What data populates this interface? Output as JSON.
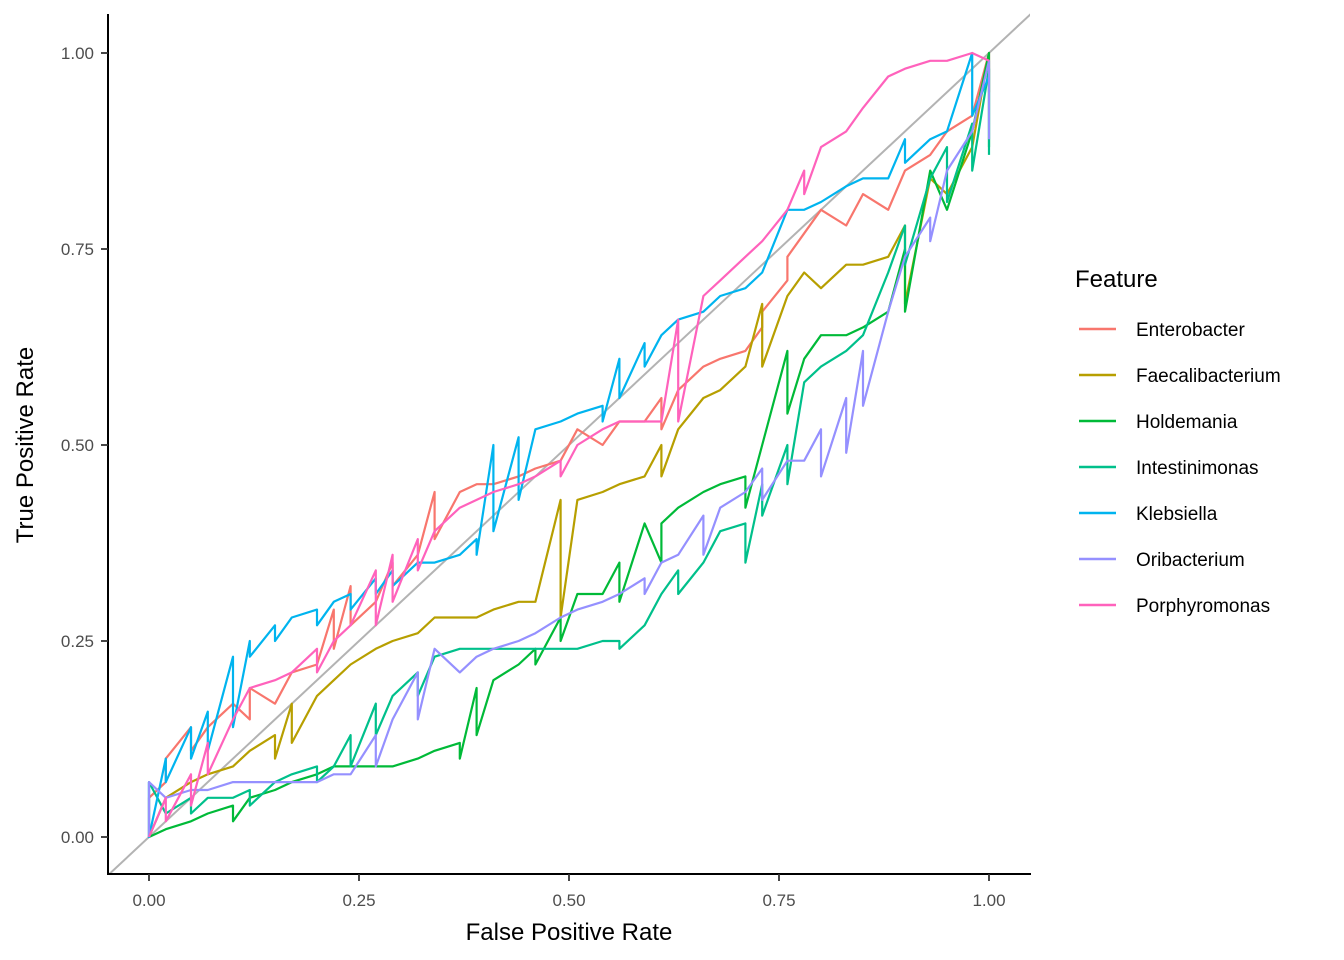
{
  "chart_data": {
    "type": "line",
    "xlabel": "False Positive Rate",
    "ylabel": "True Positive Rate",
    "xlim": [
      0,
      1
    ],
    "ylim": [
      0,
      1
    ],
    "x_ticks": [
      "0.00",
      "0.25",
      "0.50",
      "0.75",
      "1.00"
    ],
    "y_ticks": [
      "0.00",
      "0.25",
      "0.50",
      "0.75",
      "1.00"
    ],
    "x_tick_values": [
      0,
      0.25,
      0.5,
      0.75,
      1
    ],
    "y_tick_values": [
      0,
      0.25,
      0.5,
      0.75,
      1
    ],
    "grid": false,
    "legend": {
      "title": "Feature",
      "position": "right"
    },
    "reference_line": {
      "x": [
        0,
        1
      ],
      "y": [
        0,
        1
      ],
      "color": "#b3b3b3"
    },
    "series": [
      {
        "name": "Enterobacter",
        "color": "#F8766D",
        "x": [
          0,
          0,
          0.02,
          0.02,
          0.05,
          0.05,
          0.07,
          0.1,
          0.12,
          0.12,
          0.15,
          0.17,
          0.2,
          0.22,
          0.22,
          0.24,
          0.24,
          0.27,
          0.29,
          0.29,
          0.32,
          0.34,
          0.34,
          0.37,
          0.39,
          0.41,
          0.44,
          0.46,
          0.49,
          0.51,
          0.54,
          0.56,
          0.59,
          0.61,
          0.61,
          0.63,
          0.66,
          0.68,
          0.71,
          0.73,
          0.73,
          0.76,
          0.76,
          0.78,
          0.8,
          0.83,
          0.85,
          0.88,
          0.9,
          0.93,
          0.95,
          0.98,
          1,
          1
        ],
        "y": [
          0,
          0.05,
          0.07,
          0.1,
          0.14,
          0.11,
          0.14,
          0.17,
          0.15,
          0.19,
          0.17,
          0.21,
          0.22,
          0.29,
          0.24,
          0.32,
          0.27,
          0.3,
          0.35,
          0.32,
          0.36,
          0.44,
          0.38,
          0.44,
          0.45,
          0.45,
          0.46,
          0.47,
          0.48,
          0.52,
          0.5,
          0.53,
          0.53,
          0.56,
          0.52,
          0.57,
          0.6,
          0.61,
          0.62,
          0.65,
          0.67,
          0.71,
          0.74,
          0.77,
          0.8,
          0.78,
          0.82,
          0.8,
          0.85,
          0.87,
          0.9,
          0.92,
          1,
          0.95
        ]
      },
      {
        "name": "Faecalibacterium",
        "color": "#B79F00",
        "x": [
          0,
          0.02,
          0.05,
          0.07,
          0.1,
          0.12,
          0.15,
          0.15,
          0.17,
          0.17,
          0.2,
          0.22,
          0.24,
          0.27,
          0.29,
          0.32,
          0.34,
          0.37,
          0.39,
          0.41,
          0.44,
          0.46,
          0.49,
          0.49,
          0.51,
          0.54,
          0.56,
          0.59,
          0.61,
          0.61,
          0.63,
          0.66,
          0.68,
          0.71,
          0.73,
          0.73,
          0.76,
          0.78,
          0.8,
          0.83,
          0.85,
          0.88,
          0.9,
          0.9,
          0.93,
          0.95,
          0.98,
          1
        ],
        "y": [
          0,
          0.05,
          0.07,
          0.08,
          0.09,
          0.11,
          0.13,
          0.1,
          0.17,
          0.12,
          0.18,
          0.2,
          0.22,
          0.24,
          0.25,
          0.26,
          0.28,
          0.28,
          0.28,
          0.29,
          0.3,
          0.3,
          0.43,
          0.28,
          0.43,
          0.44,
          0.45,
          0.46,
          0.5,
          0.46,
          0.52,
          0.56,
          0.57,
          0.6,
          0.68,
          0.6,
          0.69,
          0.72,
          0.7,
          0.73,
          0.73,
          0.74,
          0.78,
          0.68,
          0.84,
          0.82,
          0.88,
          1
        ]
      },
      {
        "name": "Holdemania",
        "color": "#00BA38",
        "x": [
          0,
          0.02,
          0.05,
          0.07,
          0.1,
          0.1,
          0.12,
          0.15,
          0.17,
          0.2,
          0.22,
          0.24,
          0.27,
          0.29,
          0.32,
          0.34,
          0.37,
          0.37,
          0.39,
          0.39,
          0.41,
          0.44,
          0.46,
          0.46,
          0.49,
          0.49,
          0.51,
          0.54,
          0.56,
          0.56,
          0.59,
          0.61,
          0.61,
          0.63,
          0.66,
          0.68,
          0.71,
          0.71,
          0.73,
          0.76,
          0.76,
          0.78,
          0.8,
          0.83,
          0.85,
          0.88,
          0.9,
          0.9,
          0.93,
          0.95,
          0.98,
          1,
          1
        ],
        "y": [
          0,
          0.01,
          0.02,
          0.03,
          0.04,
          0.02,
          0.05,
          0.06,
          0.07,
          0.08,
          0.09,
          0.09,
          0.09,
          0.09,
          0.1,
          0.11,
          0.12,
          0.1,
          0.19,
          0.13,
          0.2,
          0.22,
          0.24,
          0.22,
          0.28,
          0.25,
          0.31,
          0.31,
          0.35,
          0.3,
          0.4,
          0.35,
          0.4,
          0.42,
          0.44,
          0.45,
          0.46,
          0.42,
          0.5,
          0.62,
          0.54,
          0.61,
          0.64,
          0.64,
          0.65,
          0.67,
          0.75,
          0.67,
          0.85,
          0.8,
          0.9,
          1,
          0.88
        ]
      },
      {
        "name": "Intestinimonas",
        "color": "#00C08B",
        "x": [
          0,
          0,
          0.02,
          0.05,
          0.05,
          0.07,
          0.1,
          0.12,
          0.12,
          0.15,
          0.17,
          0.2,
          0.2,
          0.22,
          0.24,
          0.24,
          0.27,
          0.27,
          0.29,
          0.32,
          0.32,
          0.34,
          0.37,
          0.39,
          0.41,
          0.44,
          0.46,
          0.49,
          0.51,
          0.54,
          0.56,
          0.56,
          0.59,
          0.61,
          0.63,
          0.63,
          0.66,
          0.68,
          0.71,
          0.71,
          0.73,
          0.73,
          0.76,
          0.76,
          0.78,
          0.8,
          0.83,
          0.85,
          0.88,
          0.9,
          0.9,
          0.93,
          0.95,
          0.95,
          0.98,
          0.98,
          1,
          1
        ],
        "y": [
          0,
          0.07,
          0.03,
          0.05,
          0.03,
          0.05,
          0.05,
          0.06,
          0.04,
          0.07,
          0.08,
          0.09,
          0.07,
          0.09,
          0.13,
          0.09,
          0.17,
          0.13,
          0.18,
          0.21,
          0.18,
          0.23,
          0.24,
          0.24,
          0.24,
          0.24,
          0.24,
          0.24,
          0.24,
          0.25,
          0.25,
          0.24,
          0.27,
          0.31,
          0.34,
          0.31,
          0.35,
          0.39,
          0.4,
          0.35,
          0.45,
          0.41,
          0.5,
          0.45,
          0.58,
          0.6,
          0.62,
          0.64,
          0.72,
          0.78,
          0.73,
          0.84,
          0.88,
          0.81,
          0.91,
          0.85,
          0.98,
          0.87
        ]
      },
      {
        "name": "Klebsiella",
        "color": "#00B4EF",
        "x": [
          0,
          0,
          0.02,
          0.02,
          0.05,
          0.05,
          0.07,
          0.07,
          0.1,
          0.1,
          0.12,
          0.12,
          0.15,
          0.15,
          0.17,
          0.2,
          0.2,
          0.22,
          0.24,
          0.24,
          0.27,
          0.27,
          0.29,
          0.29,
          0.32,
          0.34,
          0.37,
          0.39,
          0.39,
          0.41,
          0.41,
          0.44,
          0.44,
          0.46,
          0.49,
          0.51,
          0.54,
          0.54,
          0.56,
          0.56,
          0.59,
          0.59,
          0.61,
          0.63,
          0.66,
          0.68,
          0.71,
          0.73,
          0.76,
          0.78,
          0.8,
          0.83,
          0.85,
          0.88,
          0.9,
          0.9,
          0.93,
          0.95,
          0.98,
          0.98,
          1
        ],
        "y": [
          0.07,
          0,
          0.1,
          0.07,
          0.14,
          0.1,
          0.16,
          0.11,
          0.23,
          0.14,
          0.25,
          0.23,
          0.27,
          0.25,
          0.28,
          0.29,
          0.27,
          0.3,
          0.31,
          0.29,
          0.33,
          0.31,
          0.34,
          0.32,
          0.35,
          0.35,
          0.36,
          0.38,
          0.36,
          0.5,
          0.39,
          0.51,
          0.43,
          0.52,
          0.53,
          0.54,
          0.55,
          0.53,
          0.61,
          0.56,
          0.63,
          0.6,
          0.64,
          0.66,
          0.67,
          0.69,
          0.7,
          0.72,
          0.8,
          0.8,
          0.81,
          0.83,
          0.84,
          0.84,
          0.89,
          0.86,
          0.89,
          0.9,
          1,
          0.92,
          0.97
        ]
      },
      {
        "name": "Oribacterium",
        "color": "#9590FF",
        "x": [
          0,
          0,
          0.02,
          0.05,
          0.07,
          0.1,
          0.12,
          0.15,
          0.17,
          0.2,
          0.22,
          0.24,
          0.27,
          0.27,
          0.29,
          0.32,
          0.32,
          0.34,
          0.37,
          0.39,
          0.41,
          0.44,
          0.46,
          0.49,
          0.51,
          0.54,
          0.56,
          0.59,
          0.59,
          0.61,
          0.63,
          0.66,
          0.66,
          0.68,
          0.71,
          0.73,
          0.73,
          0.76,
          0.78,
          0.8,
          0.8,
          0.83,
          0.83,
          0.85,
          0.85,
          0.88,
          0.9,
          0.93,
          0.93,
          0.95,
          0.98,
          1,
          1
        ],
        "y": [
          0,
          0.07,
          0.05,
          0.06,
          0.06,
          0.07,
          0.07,
          0.07,
          0.07,
          0.07,
          0.08,
          0.08,
          0.13,
          0.09,
          0.15,
          0.21,
          0.15,
          0.24,
          0.21,
          0.23,
          0.24,
          0.25,
          0.26,
          0.28,
          0.29,
          0.3,
          0.31,
          0.33,
          0.31,
          0.35,
          0.36,
          0.41,
          0.36,
          0.42,
          0.44,
          0.47,
          0.43,
          0.48,
          0.48,
          0.52,
          0.46,
          0.56,
          0.49,
          0.62,
          0.55,
          0.67,
          0.74,
          0.79,
          0.76,
          0.85,
          0.9,
          0.99,
          0.89
        ]
      },
      {
        "name": "Porphyromonas",
        "color": "#FF62BC",
        "x": [
          0,
          0.02,
          0.02,
          0.05,
          0.05,
          0.07,
          0.07,
          0.1,
          0.1,
          0.12,
          0.15,
          0.17,
          0.2,
          0.2,
          0.22,
          0.22,
          0.24,
          0.27,
          0.27,
          0.29,
          0.29,
          0.32,
          0.32,
          0.34,
          0.37,
          0.39,
          0.41,
          0.44,
          0.46,
          0.49,
          0.49,
          0.51,
          0.54,
          0.56,
          0.59,
          0.61,
          0.63,
          0.63,
          0.66,
          0.68,
          0.71,
          0.73,
          0.76,
          0.78,
          0.78,
          0.8,
          0.83,
          0.85,
          0.88,
          0.9,
          0.93,
          0.95,
          0.98,
          1
        ],
        "y": [
          0,
          0.05,
          0.02,
          0.08,
          0.04,
          0.12,
          0.08,
          0.15,
          0.15,
          0.19,
          0.2,
          0.21,
          0.24,
          0.21,
          0.25,
          0.25,
          0.27,
          0.34,
          0.27,
          0.36,
          0.3,
          0.38,
          0.34,
          0.39,
          0.42,
          0.43,
          0.44,
          0.45,
          0.46,
          0.48,
          0.46,
          0.5,
          0.52,
          0.53,
          0.53,
          0.53,
          0.66,
          0.53,
          0.69,
          0.71,
          0.74,
          0.76,
          0.8,
          0.85,
          0.82,
          0.88,
          0.9,
          0.93,
          0.97,
          0.98,
          0.99,
          0.99,
          1,
          0.99
        ]
      }
    ]
  }
}
